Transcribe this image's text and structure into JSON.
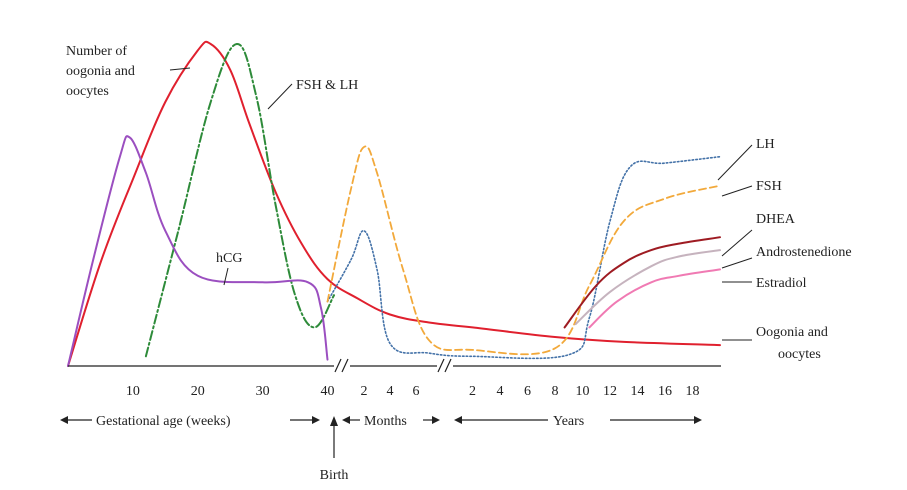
{
  "chart_data": {
    "type": "line",
    "title": "",
    "xlabel": "",
    "ylabel": "",
    "grid": false,
    "legend": "direct labels",
    "x_segments": [
      {
        "label": "Gestational age (weeks)",
        "unit": "weeks",
        "range": [
          0,
          41
        ],
        "ticks": [
          "10",
          "20",
          "30",
          "40"
        ]
      },
      {
        "label": "Months",
        "unit": "months",
        "range": [
          0,
          8
        ],
        "ticks": [
          "2",
          "4",
          "6"
        ]
      },
      {
        "label": "Years",
        "unit": "years",
        "range": [
          0,
          20
        ],
        "ticks": [
          "2",
          "4",
          "6",
          "8",
          "10",
          "12",
          "14",
          "16",
          "18"
        ]
      }
    ],
    "birth_label": "Birth",
    "series": [
      {
        "name": "Number of oogonia and oocytes",
        "end_label": "Oogonia and oocytes",
        "color": "#e0202e",
        "style": "solid",
        "points": [
          [
            "weeks",
            0,
            0
          ],
          [
            "weeks",
            5,
            0.32
          ],
          [
            "weeks",
            10,
            0.58
          ],
          [
            "weeks",
            15,
            0.82
          ],
          [
            "weeks",
            20,
            0.98
          ],
          [
            "weeks",
            22,
            1.0
          ],
          [
            "weeks",
            25,
            0.92
          ],
          [
            "weeks",
            28,
            0.75
          ],
          [
            "weeks",
            32,
            0.54
          ],
          [
            "weeks",
            36,
            0.38
          ],
          [
            "weeks",
            40,
            0.27
          ],
          [
            "months",
            1.5,
            0.21
          ],
          [
            "months",
            4,
            0.16
          ],
          [
            "months",
            7,
            0.135
          ],
          [
            "years",
            2,
            0.12
          ],
          [
            "years",
            8,
            0.09
          ],
          [
            "years",
            13,
            0.075
          ],
          [
            "years",
            20,
            0.065
          ]
        ]
      },
      {
        "name": "FSH & LH",
        "color": "#2e8b3a",
        "style": "dashdot",
        "points": [
          [
            "weeks",
            12,
            0.03
          ],
          [
            "weeks",
            17,
            0.42
          ],
          [
            "weeks",
            22,
            0.82
          ],
          [
            "weeks",
            26,
            1.0
          ],
          [
            "weeks",
            29,
            0.84
          ],
          [
            "weeks",
            32,
            0.5
          ],
          [
            "weeks",
            35,
            0.22
          ],
          [
            "weeks",
            38,
            0.12
          ],
          [
            "weeks",
            41,
            0.22
          ]
        ]
      },
      {
        "name": "hCG",
        "color": "#9b4fc0",
        "style": "solid",
        "points": [
          [
            "weeks",
            0,
            0
          ],
          [
            "weeks",
            4,
            0.34
          ],
          [
            "weeks",
            8,
            0.65
          ],
          [
            "weeks",
            9.5,
            0.71
          ],
          [
            "weeks",
            12,
            0.6
          ],
          [
            "weeks",
            15,
            0.42
          ],
          [
            "weeks",
            20,
            0.28
          ],
          [
            "weeks",
            30,
            0.26
          ],
          [
            "weeks",
            37,
            0.26
          ],
          [
            "weeks",
            39,
            0.18
          ],
          [
            "weeks",
            40,
            0.02
          ]
        ]
      },
      {
        "name": "LH",
        "color": "#4472a8",
        "style": "dotted",
        "points": [
          [
            "weeks",
            40,
            0.2
          ],
          [
            "months",
            1,
            0.33
          ],
          [
            "months",
            2,
            0.42
          ],
          [
            "months",
            3,
            0.3
          ],
          [
            "months",
            4,
            0.07
          ],
          [
            "months",
            7,
            0.04
          ],
          [
            "years",
            2,
            0.03
          ],
          [
            "years",
            9,
            0.035
          ],
          [
            "years",
            10.5,
            0.15
          ],
          [
            "years",
            12,
            0.45
          ],
          [
            "years",
            13.5,
            0.62
          ],
          [
            "years",
            16,
            0.63
          ],
          [
            "years",
            20,
            0.65
          ]
        ]
      },
      {
        "name": "FSH",
        "color": "#f2a93b",
        "style": "dashed",
        "points": [
          [
            "weeks",
            40,
            0.2
          ],
          [
            "months",
            1,
            0.55
          ],
          [
            "months",
            2,
            0.68
          ],
          [
            "months",
            3,
            0.6
          ],
          [
            "months",
            5,
            0.3
          ],
          [
            "months",
            7,
            0.08
          ],
          [
            "years",
            2,
            0.05
          ],
          [
            "years",
            8,
            0.055
          ],
          [
            "years",
            10.5,
            0.25
          ],
          [
            "years",
            13,
            0.45
          ],
          [
            "years",
            16,
            0.52
          ],
          [
            "years",
            20,
            0.56
          ]
        ]
      },
      {
        "name": "DHEA",
        "color": "#9e1b22",
        "style": "solid",
        "points": [
          [
            "years",
            8.7,
            0.12
          ],
          [
            "years",
            11,
            0.25
          ],
          [
            "years",
            13,
            0.32
          ],
          [
            "years",
            15,
            0.36
          ],
          [
            "years",
            17,
            0.38
          ],
          [
            "years",
            20,
            0.4
          ]
        ]
      },
      {
        "name": "Androstenedione",
        "color": "#c6b3be",
        "style": "solid",
        "points": [
          [
            "years",
            9.5,
            0.13
          ],
          [
            "years",
            12,
            0.23
          ],
          [
            "years",
            15,
            0.31
          ],
          [
            "years",
            17,
            0.34
          ],
          [
            "years",
            20,
            0.36
          ]
        ]
      },
      {
        "name": "Estradiol",
        "color": "#f07ab3",
        "style": "solid",
        "points": [
          [
            "years",
            10.5,
            0.12
          ],
          [
            "years",
            12.5,
            0.2
          ],
          [
            "years",
            15,
            0.26
          ],
          [
            "years",
            17,
            0.28
          ],
          [
            "years",
            20,
            0.3
          ]
        ]
      }
    ]
  },
  "labels": {
    "oogonia_top": [
      "Number of",
      "oogonia and",
      "oocytes"
    ],
    "fsh_lh": "FSH & LH",
    "hcg": "hCG",
    "lh": "LH",
    "fsh": "FSH",
    "dhea": "DHEA",
    "androstenedione": "Androstenedione",
    "estradiol": "Estradiol",
    "oogonia_end": [
      "Oogonia and",
      "oocytes"
    ]
  }
}
